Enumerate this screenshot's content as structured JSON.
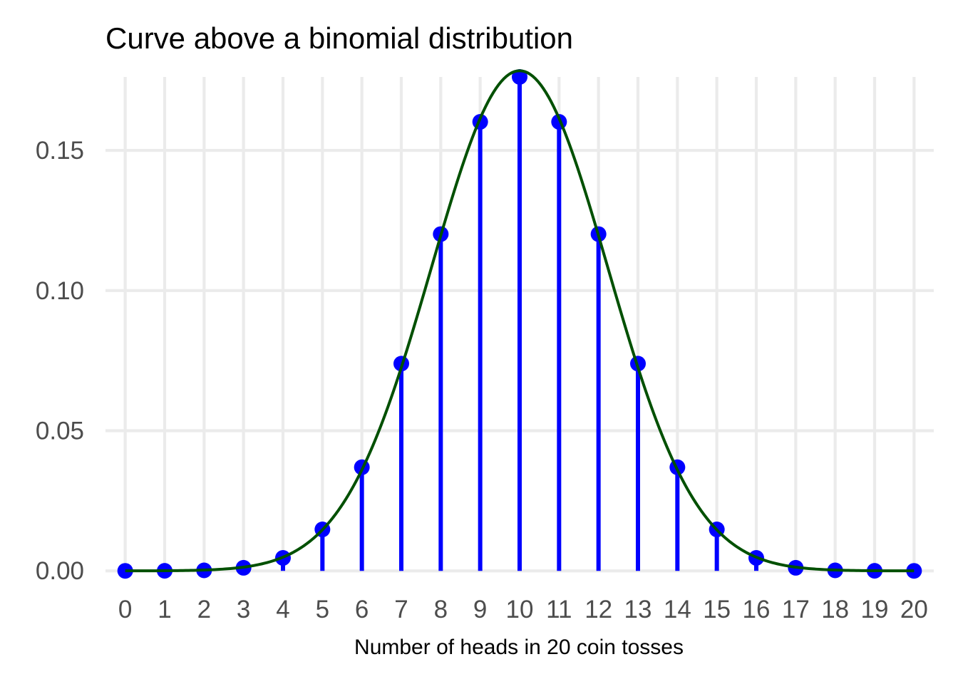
{
  "chart_data": {
    "type": "bar",
    "title": "Curve above a binomial distribution",
    "xlabel": "Number of heads in 20 coin tosses",
    "ylabel": "",
    "x": [
      0,
      1,
      2,
      3,
      4,
      5,
      6,
      7,
      8,
      9,
      10,
      11,
      12,
      13,
      14,
      15,
      16,
      17,
      18,
      19,
      20
    ],
    "x_tick_labels": [
      "0",
      "1",
      "2",
      "3",
      "4",
      "5",
      "6",
      "7",
      "8",
      "9",
      "10",
      "11",
      "12",
      "13",
      "14",
      "15",
      "16",
      "17",
      "18",
      "19",
      "20"
    ],
    "y_ticks": [
      0.0,
      0.05,
      0.1,
      0.15
    ],
    "y_tick_labels": [
      "0.00",
      "0.05",
      "0.10",
      "0.15"
    ],
    "xlim": [
      -0.5,
      20.5
    ],
    "ylim": [
      -0.0002,
      0.1762
    ],
    "grid": true,
    "legend": "none",
    "series": [
      {
        "mark": "lollipop",
        "values": [
          1e-06,
          1.9e-05,
          0.000181,
          0.001087,
          0.004621,
          0.014786,
          0.036964,
          0.073929,
          0.120134,
          0.160179,
          0.176197,
          0.160179,
          0.120134,
          0.073929,
          0.036964,
          0.014786,
          0.004621,
          0.001087,
          0.000181,
          1.9e-05,
          1e-06
        ],
        "color": "#0000ff"
      },
      {
        "mark": "curve",
        "function": "normal_density",
        "mean": 10,
        "sd": 2.236068,
        "color": "#005000"
      }
    ]
  }
}
